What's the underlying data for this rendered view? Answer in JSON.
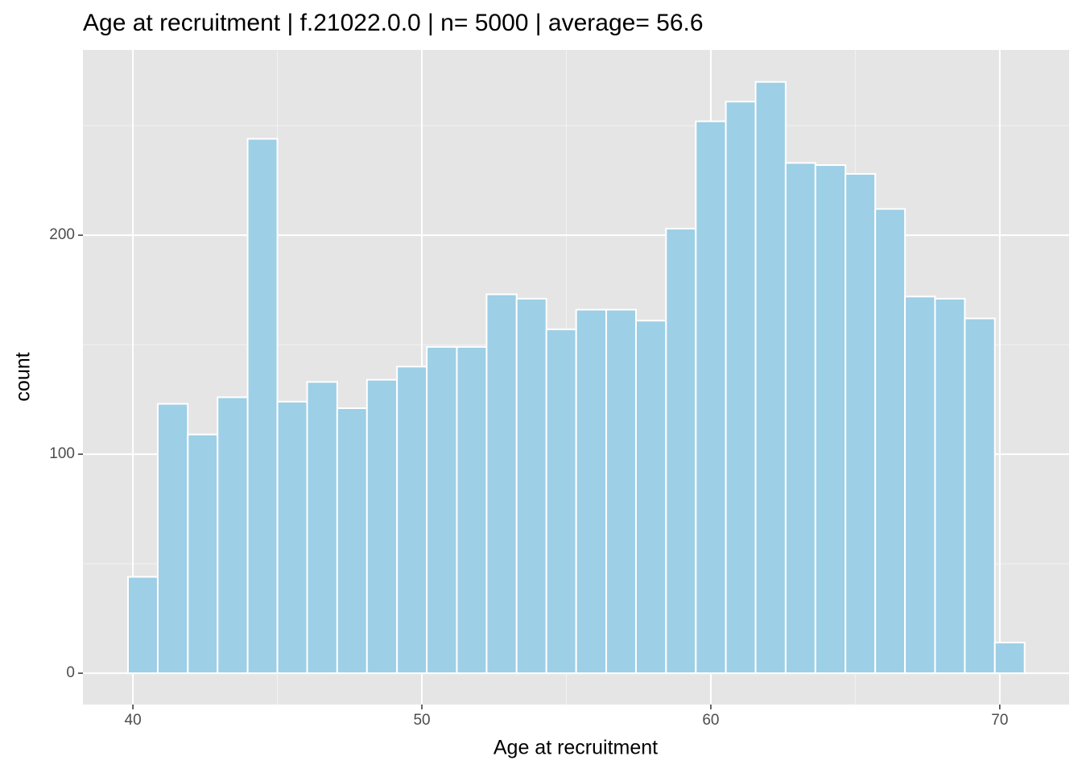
{
  "chart_data": {
    "type": "histogram",
    "title": "Age at recruitment | f.21022.0.0 | n= 5000  | average= 56.6",
    "x_label": "Age at recruitment",
    "y_label": "count",
    "bins": [
      39.83,
      40.86,
      41.9,
      42.93,
      43.97,
      45.0,
      46.03,
      47.07,
      48.1,
      49.14,
      50.17,
      51.21,
      52.24,
      53.28,
      54.31,
      55.34,
      56.38,
      57.41,
      58.45,
      59.48,
      60.52,
      61.55,
      62.59,
      63.62,
      64.66,
      65.69,
      66.72,
      67.76,
      68.79,
      69.83,
      70.86
    ],
    "values": [
      44,
      123,
      109,
      126,
      244,
      124,
      133,
      121,
      134,
      140,
      149,
      149,
      173,
      171,
      157,
      166,
      166,
      161,
      203,
      252,
      261,
      270,
      233,
      232,
      228,
      212,
      172,
      171,
      162,
      14
    ],
    "color": "#9dcfe6",
    "xlim": [
      38.27,
      72.4
    ],
    "ylim": [
      -14.3,
      284.6
    ],
    "xticks": [
      40,
      50,
      60,
      70
    ],
    "yticks": [
      0,
      100,
      200
    ],
    "xminor": [
      45,
      55,
      65
    ],
    "yminor": [
      50,
      150,
      250
    ],
    "grid": true
  }
}
